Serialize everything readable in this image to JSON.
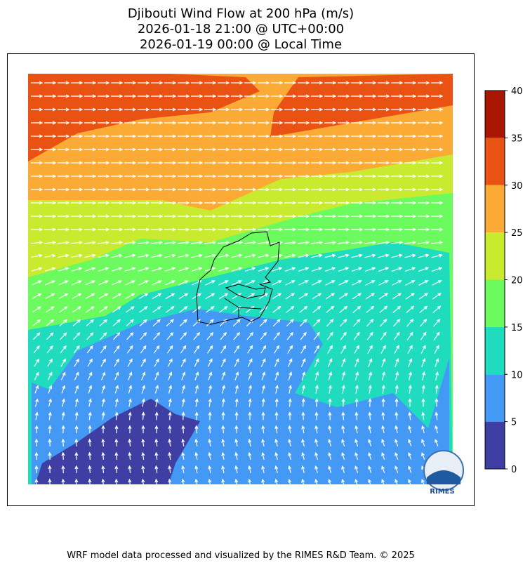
{
  "title": [
    "Djibouti Wind Flow at 200 hPa (m/s)",
    "2026-01-18 21:00 @ UTC+00:00",
    "2026-01-19 00:00 @ Local Time"
  ],
  "colorbar": {
    "ticks": [
      0,
      5,
      10,
      15,
      20,
      25,
      30,
      35,
      40
    ],
    "colors": [
      "#3f3fa3",
      "#4499f5",
      "#1fdcbf",
      "#6cfb5e",
      "#c9ea2f",
      "#fbab35",
      "#ea5214",
      "#a91602"
    ]
  },
  "logo": "RIMES",
  "footer": "WRF model data processed and visualized by the RIMES R&D Team. © 2025"
}
